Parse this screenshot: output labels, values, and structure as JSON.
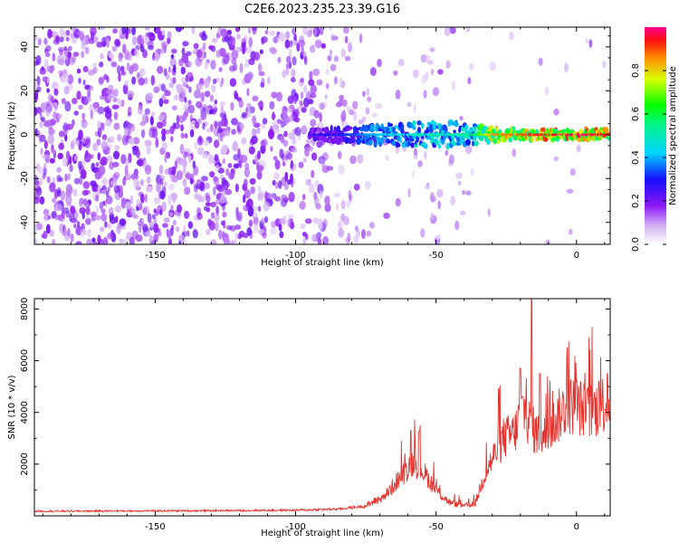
{
  "title": "C2E6.2023.235.23.39.G16",
  "chart_data": [
    {
      "type": "heatmap",
      "xlabel": "Height of straight line (km)",
      "ylabel": "Frequency (Hz)",
      "xlim": [
        -193,
        12
      ],
      "ylim": [
        -50,
        49
      ],
      "xticks": [
        -150,
        -100,
        -50,
        0
      ],
      "yticks": [
        -40,
        -20,
        0,
        20,
        40
      ],
      "colorbar": {
        "label": "Normalized spectral amplitude",
        "range": [
          0,
          1
        ],
        "ticks": [
          0.0,
          0.2,
          0.4,
          0.6,
          0.8
        ],
        "tick_labels": [
          "0.0",
          "0.2",
          "0.4",
          "0.6",
          "0.8"
        ]
      },
      "ridge": {
        "frequency_hz": 0,
        "points": [
          {
            "x": -95,
            "width_hz": 3,
            "amp": 0.25
          },
          {
            "x": -85,
            "width_hz": 4,
            "amp": 0.3
          },
          {
            "x": -75,
            "width_hz": 5,
            "amp": 0.38
          },
          {
            "x": -65,
            "width_hz": 6,
            "amp": 0.45
          },
          {
            "x": -55,
            "width_hz": 7,
            "amp": 0.5
          },
          {
            "x": -45,
            "width_hz": 8,
            "amp": 0.52
          },
          {
            "x": -38,
            "width_hz": 6,
            "amp": 0.55
          },
          {
            "x": -30,
            "width_hz": 4,
            "amp": 0.85
          },
          {
            "x": -20,
            "width_hz": 3,
            "amp": 0.9
          },
          {
            "x": -10,
            "width_hz": 3,
            "amp": 0.95
          },
          {
            "x": 0,
            "width_hz": 3,
            "amp": 0.98
          },
          {
            "x": 10,
            "width_hz": 3,
            "amp": 0.95
          }
        ]
      },
      "noise_region_x": [
        -193,
        -37
      ]
    },
    {
      "type": "line",
      "xlabel": "Height of straight line (km)",
      "ylabel": "SNR (10 * v/v)",
      "xlim": [
        -193,
        12
      ],
      "ylim": [
        0,
        8400
      ],
      "xticks": [
        -150,
        -100,
        -50,
        0
      ],
      "yticks": [
        2000,
        4000,
        6000,
        8000
      ],
      "color": "#e8322d",
      "envelope": [
        {
          "x": -193,
          "y": 180
        },
        {
          "x": -160,
          "y": 190
        },
        {
          "x": -130,
          "y": 200
        },
        {
          "x": -100,
          "y": 220
        },
        {
          "x": -85,
          "y": 260
        },
        {
          "x": -75,
          "y": 380
        },
        {
          "x": -68,
          "y": 800
        },
        {
          "x": -62,
          "y": 1600
        },
        {
          "x": -58,
          "y": 2100
        },
        {
          "x": -55,
          "y": 1800
        },
        {
          "x": -50,
          "y": 1000
        },
        {
          "x": -45,
          "y": 500
        },
        {
          "x": -40,
          "y": 380
        },
        {
          "x": -36,
          "y": 500
        },
        {
          "x": -33,
          "y": 1500
        },
        {
          "x": -30,
          "y": 2200
        },
        {
          "x": -26,
          "y": 3000
        },
        {
          "x": -22,
          "y": 3200
        },
        {
          "x": -19,
          "y": 4200
        },
        {
          "x": -16,
          "y": 3400
        },
        {
          "x": -12,
          "y": 3000
        },
        {
          "x": -8,
          "y": 3600
        },
        {
          "x": -4,
          "y": 4200
        },
        {
          "x": 0,
          "y": 4300
        },
        {
          "x": 4,
          "y": 4000
        },
        {
          "x": 8,
          "y": 4200
        },
        {
          "x": 12,
          "y": 4600
        }
      ],
      "spikes": [
        {
          "x": -59,
          "y": 3300
        },
        {
          "x": -56,
          "y": 3250
        },
        {
          "x": -20,
          "y": 5700
        },
        {
          "x": -16,
          "y": 8400
        },
        {
          "x": -13,
          "y": 5500
        },
        {
          "x": 8,
          "y": 5200
        },
        {
          "x": 11,
          "y": 5500
        }
      ]
    }
  ]
}
